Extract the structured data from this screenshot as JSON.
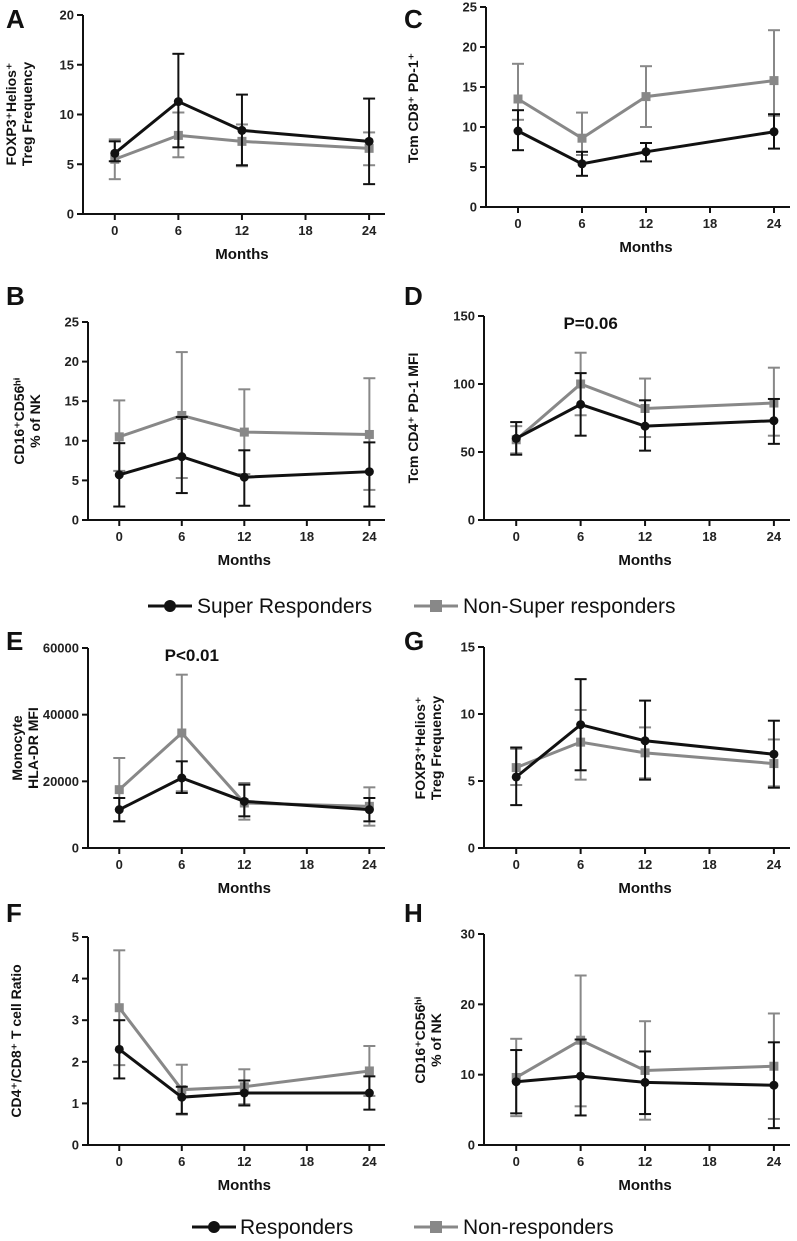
{
  "chart_data": [
    {
      "panel": "A",
      "type": "line",
      "ylabel_line1": "FOXP3⁺Helios⁺",
      "ylabel_line2": "Treg Frequency",
      "xlabel": "Months",
      "x": [
        0,
        6,
        12,
        24
      ],
      "xticks": [
        0,
        6,
        12,
        18,
        24
      ],
      "xlim": [
        -3,
        25.5
      ],
      "ylim": [
        0,
        20
      ],
      "yticks": [
        0,
        5,
        10,
        15,
        20
      ],
      "series": [
        {
          "name": "Super Responders",
          "color": "#111111",
          "marker": "circle",
          "values": [
            6.1,
            11.3,
            8.4,
            7.3
          ],
          "err_hi": [
            1.2,
            4.8,
            3.6,
            4.3
          ],
          "err_lo": [
            0.8,
            4.6,
            3.5,
            4.3
          ]
        },
        {
          "name": "Non-Super responders",
          "color": "#888888",
          "marker": "square",
          "values": [
            5.5,
            7.9,
            7.3,
            6.6
          ],
          "err_hi": [
            2.0,
            2.3,
            1.7,
            1.6
          ],
          "err_lo": [
            2.0,
            2.2,
            2.5,
            1.7
          ]
        }
      ]
    },
    {
      "panel": "C",
      "type": "line",
      "ylabel_line1": "Tcm CD8⁺ PD-1⁺",
      "ylabel_line2": "",
      "xlabel": "Months",
      "x": [
        0,
        6,
        12,
        24
      ],
      "xticks": [
        0,
        6,
        12,
        18,
        24
      ],
      "xlim": [
        -3,
        25.5
      ],
      "ylim": [
        0,
        25
      ],
      "yticks": [
        0,
        5,
        10,
        15,
        20,
        25
      ],
      "series": [
        {
          "name": "Super Responders",
          "color": "#111111",
          "marker": "circle",
          "values": [
            9.5,
            5.4,
            6.9,
            9.4
          ],
          "err_hi": [
            2.6,
            1.5,
            1.1,
            2.2
          ],
          "err_lo": [
            2.4,
            1.5,
            1.2,
            2.1
          ]
        },
        {
          "name": "Non-Super responders",
          "color": "#888888",
          "marker": "square",
          "values": [
            13.5,
            8.6,
            13.8,
            15.8
          ],
          "err_hi": [
            4.4,
            3.2,
            3.8,
            6.3
          ],
          "err_lo": [
            2.6,
            2.1,
            3.8,
            4.4
          ]
        }
      ]
    },
    {
      "panel": "B",
      "type": "line",
      "ylabel_line1": "CD16⁺CD56ʰⁱ",
      "ylabel_line2": "% of NK",
      "xlabel": "Months",
      "x": [
        0,
        6,
        12,
        24
      ],
      "xticks": [
        0,
        6,
        12,
        18,
        24
      ],
      "xlim": [
        -3,
        25.5
      ],
      "ylim": [
        0,
        25
      ],
      "yticks": [
        0,
        5,
        10,
        15,
        20,
        25
      ],
      "series": [
        {
          "name": "Super Responders",
          "color": "#111111",
          "marker": "circle",
          "values": [
            5.7,
            8.0,
            5.4,
            6.1
          ],
          "err_hi": [
            4.0,
            5.0,
            3.4,
            3.7
          ],
          "err_lo": [
            4.0,
            4.6,
            3.6,
            4.4
          ]
        },
        {
          "name": "Non-Super responders",
          "color": "#888888",
          "marker": "square",
          "values": [
            10.5,
            13.2,
            11.1,
            10.8
          ],
          "err_hi": [
            4.6,
            8.0,
            5.4,
            7.1
          ],
          "err_lo": [
            4.3,
            7.9,
            5.3,
            7.0
          ]
        }
      ]
    },
    {
      "panel": "D",
      "type": "line",
      "ylabel_line1": "Tcm CD4⁺ PD-1 MFI",
      "ylabel_line2": "",
      "annotation": "P=0.06",
      "xlabel": "Months",
      "x": [
        0,
        6,
        12,
        24
      ],
      "xticks": [
        0,
        6,
        12,
        18,
        24
      ],
      "xlim": [
        -3,
        25.5
      ],
      "ylim": [
        0,
        150
      ],
      "yticks": [
        0,
        50,
        100,
        150
      ],
      "series": [
        {
          "name": "Super Responders",
          "color": "#111111",
          "marker": "circle",
          "values": [
            60,
            85,
            69,
            73
          ],
          "err_hi": [
            12,
            23,
            19,
            16
          ],
          "err_lo": [
            12,
            23,
            18,
            17
          ]
        },
        {
          "name": "Non-Super responders",
          "color": "#888888",
          "marker": "square",
          "values": [
            59,
            100,
            82,
            86
          ],
          "err_hi": [
            10,
            23,
            22,
            26
          ],
          "err_lo": [
            10,
            23,
            21,
            24
          ]
        }
      ]
    },
    {
      "panel": "E",
      "type": "line",
      "ylabel_line1": "Monocyte",
      "ylabel_line2": "HLA-DR MFI",
      "annotation": "P<0.01",
      "xlabel": "Months",
      "x": [
        0,
        6,
        12,
        24
      ],
      "xticks": [
        0,
        6,
        12,
        18,
        24
      ],
      "xlim": [
        -3,
        25.5
      ],
      "ylim": [
        0,
        60000
      ],
      "yticks": [
        0,
        20000,
        40000,
        60000
      ],
      "series": [
        {
          "name": "Responders",
          "color": "#111111",
          "marker": "circle",
          "values": [
            11500,
            21000,
            14000,
            11500
          ],
          "err_hi": [
            3500,
            5000,
            5000,
            3500
          ],
          "err_lo": [
            3500,
            4500,
            4500,
            3500
          ]
        },
        {
          "name": "Non-responders",
          "color": "#888888",
          "marker": "square",
          "values": [
            17500,
            34500,
            13500,
            12500
          ],
          "err_hi": [
            9500,
            17500,
            6000,
            5700
          ],
          "err_lo": [
            9500,
            17500,
            5000,
            5800
          ]
        }
      ]
    },
    {
      "panel": "G",
      "type": "line",
      "ylabel_line1": "FOXP3⁺Helios⁺",
      "ylabel_line2": "Treg Frequency",
      "xlabel": "Months",
      "x": [
        0,
        6,
        12,
        24
      ],
      "xticks": [
        0,
        6,
        12,
        18,
        24
      ],
      "xlim": [
        -3,
        25.5
      ],
      "ylim": [
        0,
        15
      ],
      "yticks": [
        0,
        5,
        10,
        15
      ],
      "series": [
        {
          "name": "Responders",
          "color": "#111111",
          "marker": "circle",
          "values": [
            5.3,
            9.2,
            8.0,
            7.0
          ],
          "err_hi": [
            2.2,
            3.4,
            3.0,
            2.5
          ],
          "err_lo": [
            2.1,
            3.4,
            2.9,
            2.5
          ]
        },
        {
          "name": "Non-responders",
          "color": "#888888",
          "marker": "square",
          "values": [
            6.0,
            7.9,
            7.1,
            6.3
          ],
          "err_hi": [
            1.4,
            2.4,
            1.9,
            1.8
          ],
          "err_lo": [
            1.3,
            2.8,
            1.9,
            1.7
          ]
        }
      ]
    },
    {
      "panel": "F",
      "type": "line",
      "ylabel_line1": "CD4⁺/CD8⁺ T cell Ratio",
      "ylabel_line2": "",
      "xlabel": "Months",
      "x": [
        0,
        6,
        12,
        24
      ],
      "xticks": [
        0,
        6,
        12,
        18,
        24
      ],
      "xlim": [
        -3,
        25.5
      ],
      "ylim": [
        0,
        5
      ],
      "yticks": [
        0,
        1,
        2,
        3,
        4,
        5
      ],
      "series": [
        {
          "name": "Responders",
          "color": "#111111",
          "marker": "circle",
          "values": [
            2.3,
            1.15,
            1.25,
            1.25
          ],
          "err_hi": [
            0.7,
            0.25,
            0.3,
            0.4
          ],
          "err_lo": [
            0.7,
            0.4,
            0.3,
            0.4
          ]
        },
        {
          "name": "Non-responders",
          "color": "#888888",
          "marker": "square",
          "values": [
            3.3,
            1.33,
            1.4,
            1.78
          ],
          "err_hi": [
            1.38,
            0.6,
            0.42,
            0.6
          ],
          "err_lo": [
            1.38,
            0.6,
            0.42,
            0.6
          ]
        }
      ]
    },
    {
      "panel": "H",
      "type": "line",
      "ylabel_line1": "CD16⁺CD56ʰⁱ",
      "ylabel_line2": "% of NK",
      "xlabel": "Months",
      "x": [
        0,
        6,
        12,
        24
      ],
      "xticks": [
        0,
        6,
        12,
        18,
        24
      ],
      "xlim": [
        -3,
        25.5
      ],
      "ylim": [
        0,
        30
      ],
      "yticks": [
        0,
        10,
        20,
        30
      ],
      "series": [
        {
          "name": "Responders",
          "color": "#111111",
          "marker": "circle",
          "values": [
            9.0,
            9.8,
            8.9,
            8.5
          ],
          "err_hi": [
            4.5,
            5.2,
            4.4,
            6.1
          ],
          "err_lo": [
            4.5,
            5.6,
            4.5,
            6.1
          ]
        },
        {
          "name": "Non-responders",
          "color": "#888888",
          "marker": "square",
          "values": [
            9.6,
            14.9,
            10.6,
            11.2
          ],
          "err_hi": [
            5.5,
            9.2,
            7.0,
            7.5
          ],
          "err_lo": [
            5.5,
            9.4,
            7.0,
            7.5
          ]
        }
      ]
    }
  ],
  "legends": [
    {
      "items": [
        {
          "name": "Super Responders",
          "color": "#111111",
          "marker": "circle"
        },
        {
          "name": "Non-Super responders",
          "color": "#888888",
          "marker": "square"
        }
      ]
    },
    {
      "items": [
        {
          "name": "Responders",
          "color": "#111111",
          "marker": "circle"
        },
        {
          "name": "Non-responders",
          "color": "#888888",
          "marker": "square"
        }
      ]
    }
  ]
}
